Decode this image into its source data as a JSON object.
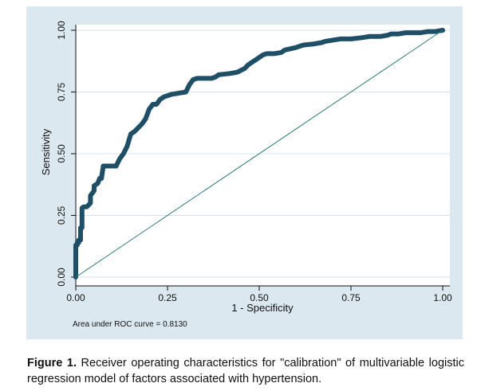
{
  "caption": {
    "label": "Figure 1.",
    "text": "Receiver operating characteristics for \"calibration\" of multivariable logistic regression model of factors associated with hypertension."
  },
  "chart_data": {
    "type": "line",
    "title": "",
    "xlabel": "1 - Specificity",
    "ylabel": "Sensitivity",
    "xlim": [
      0,
      1
    ],
    "ylim": [
      0,
      1
    ],
    "xticks": [
      "0.00",
      "0.25",
      "0.50",
      "0.75",
      "1.00"
    ],
    "yticks": [
      "0.00",
      "0.25",
      "0.50",
      "0.75",
      "1.00"
    ],
    "grid": true,
    "annotation": "Area under ROC curve = 0.8130",
    "colors": {
      "roc": "#1e4f66",
      "reference": "#2e7a74",
      "grid": "#d5e2ea",
      "panel": "#dce8ef",
      "plot_bg": "#ffffff"
    },
    "series": [
      {
        "role": "roc",
        "x": [
          0.0,
          0.0,
          0.004,
          0.004,
          0.008,
          0.008,
          0.013,
          0.013,
          0.017,
          0.017,
          0.022,
          0.03,
          0.04,
          0.04,
          0.05,
          0.05,
          0.06,
          0.065,
          0.07,
          0.075,
          0.08,
          0.08,
          0.09,
          0.1,
          0.11,
          0.12,
          0.125,
          0.13,
          0.14,
          0.145,
          0.15,
          0.16,
          0.17,
          0.18,
          0.19,
          0.195,
          0.2,
          0.21,
          0.22,
          0.23,
          0.24,
          0.26,
          0.28,
          0.3,
          0.31,
          0.32,
          0.33,
          0.34,
          0.35,
          0.37,
          0.38,
          0.39,
          0.42,
          0.44,
          0.46,
          0.47,
          0.48,
          0.49,
          0.5,
          0.51,
          0.52,
          0.54,
          0.56,
          0.57,
          0.6,
          0.61,
          0.62,
          0.65,
          0.67,
          0.68,
          0.7,
          0.72,
          0.75,
          0.78,
          0.8,
          0.83,
          0.85,
          0.86,
          0.88,
          0.9,
          0.92,
          0.94,
          0.96,
          0.98,
          1.0
        ],
        "y": [
          0.0,
          0.13,
          0.13,
          0.14,
          0.14,
          0.15,
          0.15,
          0.2,
          0.2,
          0.28,
          0.285,
          0.285,
          0.3,
          0.33,
          0.35,
          0.37,
          0.38,
          0.4,
          0.4,
          0.45,
          0.45,
          0.45,
          0.45,
          0.45,
          0.45,
          0.48,
          0.49,
          0.5,
          0.53,
          0.555,
          0.58,
          0.59,
          0.605,
          0.62,
          0.64,
          0.66,
          0.68,
          0.7,
          0.7,
          0.72,
          0.73,
          0.74,
          0.745,
          0.75,
          0.78,
          0.8,
          0.805,
          0.805,
          0.805,
          0.805,
          0.81,
          0.82,
          0.825,
          0.83,
          0.845,
          0.86,
          0.87,
          0.88,
          0.89,
          0.9,
          0.905,
          0.905,
          0.91,
          0.92,
          0.93,
          0.935,
          0.94,
          0.945,
          0.95,
          0.955,
          0.96,
          0.965,
          0.965,
          0.97,
          0.975,
          0.975,
          0.98,
          0.985,
          0.985,
          0.99,
          0.99,
          0.99,
          0.995,
          0.995,
          1.0
        ]
      },
      {
        "role": "reference",
        "x": [
          0,
          1
        ],
        "y": [
          0,
          1
        ]
      }
    ]
  }
}
